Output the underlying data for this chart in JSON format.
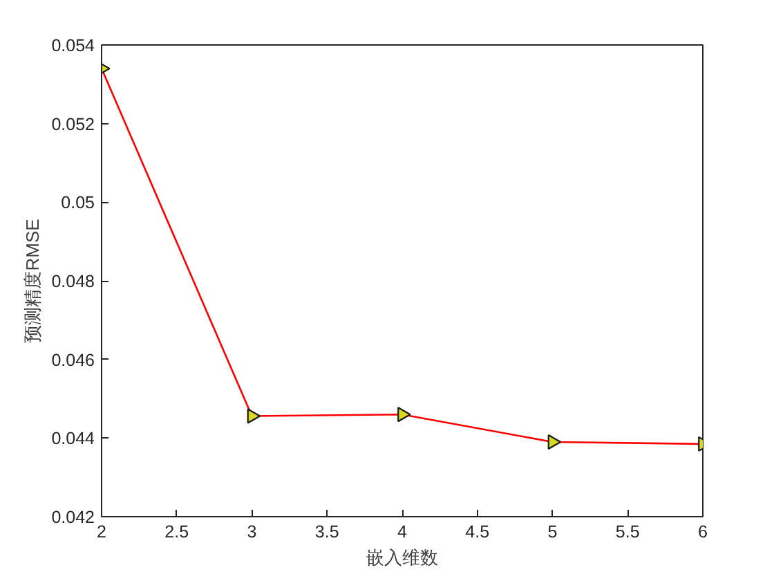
{
  "chart_data": {
    "type": "line",
    "xlabel": "嵌入维数",
    "ylabel": "预测精度RMSE",
    "x": [
      2,
      3,
      4,
      5,
      6
    ],
    "series": [
      {
        "color": "#ff0000",
        "values": [
          0.0534,
          0.04456,
          0.0446,
          0.0439,
          0.04385
        ]
      }
    ],
    "xlim": [
      2,
      6
    ],
    "xticks": [
      2,
      2.5,
      3,
      3.5,
      4,
      4.5,
      5,
      5.5,
      6
    ],
    "ylim": [
      0.042,
      0.054
    ],
    "yticks": [
      0.042,
      0.044,
      0.046,
      0.048,
      0.05,
      0.052,
      0.054
    ],
    "grid": false,
    "marker": "triangle",
    "line_style": "solid"
  }
}
